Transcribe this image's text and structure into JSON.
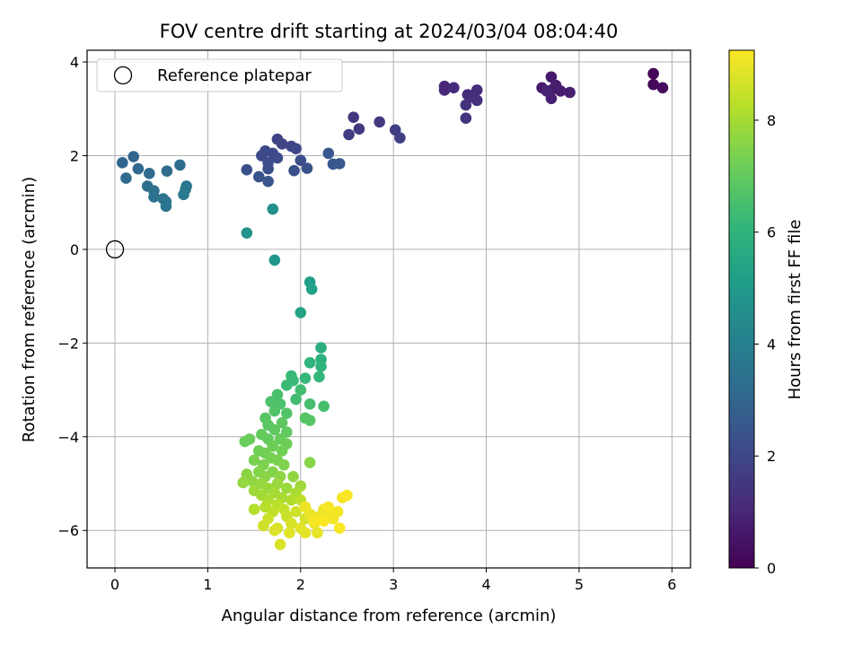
{
  "chart_data": {
    "type": "scatter",
    "title": "FOV centre drift starting at 2024/03/04 08:04:40",
    "xlabel": "Angular distance from reference (arcmin)",
    "ylabel": "Rotation from reference (arcmin)",
    "xlim": [
      -0.3,
      6.2
    ],
    "ylim": [
      -6.8,
      4.25
    ],
    "x_ticks": [
      0,
      1,
      2,
      3,
      4,
      5,
      6
    ],
    "x_tick_labels": [
      "0",
      "1",
      "2",
      "3",
      "4",
      "5",
      "6"
    ],
    "y_ticks": [
      4,
      2,
      0,
      -2,
      -4,
      -6
    ],
    "y_tick_labels": [
      "4",
      "2",
      "0",
      "−2",
      "−4",
      "−6"
    ],
    "grid": true,
    "legend": {
      "position": "top-left",
      "entries": [
        {
          "label": "Reference platepar",
          "marker": "open-circle",
          "color": "#000000"
        }
      ]
    },
    "reference_point": {
      "x": 0,
      "y": 0
    },
    "colorbar": {
      "label": "Hours from first FF file",
      "range": [
        0,
        9.25
      ],
      "ticks": [
        0,
        2,
        4,
        6,
        8
      ],
      "tick_labels": [
        "0",
        "2",
        "4",
        "6",
        "8"
      ],
      "colormap": "viridis",
      "stops": [
        "#440154",
        "#482878",
        "#3e4989",
        "#31688e",
        "#26828e",
        "#1f9e89",
        "#35b779",
        "#6ece58",
        "#b5de2b",
        "#fde725"
      ]
    },
    "points": [
      {
        "x": 5.8,
        "y": 3.75,
        "t": 0.1
      },
      {
        "x": 5.8,
        "y": 3.52,
        "t": 0.2
      },
      {
        "x": 5.9,
        "y": 3.45,
        "t": 0.25
      },
      {
        "x": 4.7,
        "y": 3.68,
        "t": 0.6
      },
      {
        "x": 4.6,
        "y": 3.45,
        "t": 0.65
      },
      {
        "x": 4.7,
        "y": 3.4,
        "t": 0.7
      },
      {
        "x": 4.75,
        "y": 3.5,
        "t": 0.7
      },
      {
        "x": 4.8,
        "y": 3.38,
        "t": 0.75
      },
      {
        "x": 4.9,
        "y": 3.35,
        "t": 0.8
      },
      {
        "x": 4.7,
        "y": 3.22,
        "t": 0.85
      },
      {
        "x": 4.65,
        "y": 3.38,
        "t": 0.9
      },
      {
        "x": 3.55,
        "y": 3.48,
        "t": 1.0
      },
      {
        "x": 3.55,
        "y": 3.4,
        "t": 1.05
      },
      {
        "x": 3.65,
        "y": 3.45,
        "t": 1.1
      },
      {
        "x": 3.8,
        "y": 3.3,
        "t": 1.15
      },
      {
        "x": 3.9,
        "y": 3.4,
        "t": 1.2
      },
      {
        "x": 3.85,
        "y": 3.25,
        "t": 1.25
      },
      {
        "x": 3.9,
        "y": 3.18,
        "t": 1.3
      },
      {
        "x": 3.78,
        "y": 3.08,
        "t": 1.35
      },
      {
        "x": 3.78,
        "y": 2.8,
        "t": 1.4
      },
      {
        "x": 2.57,
        "y": 2.82,
        "t": 1.5
      },
      {
        "x": 2.85,
        "y": 2.72,
        "t": 1.55
      },
      {
        "x": 2.63,
        "y": 2.57,
        "t": 1.6
      },
      {
        "x": 2.52,
        "y": 2.45,
        "t": 1.65
      },
      {
        "x": 3.02,
        "y": 2.55,
        "t": 1.7
      },
      {
        "x": 3.07,
        "y": 2.38,
        "t": 1.75
      },
      {
        "x": 1.75,
        "y": 2.35,
        "t": 1.85
      },
      {
        "x": 1.8,
        "y": 2.25,
        "t": 1.9
      },
      {
        "x": 1.9,
        "y": 2.2,
        "t": 1.95
      },
      {
        "x": 1.95,
        "y": 2.15,
        "t": 2.0
      },
      {
        "x": 1.62,
        "y": 2.1,
        "t": 2.05
      },
      {
        "x": 1.58,
        "y": 2.0,
        "t": 2.1
      },
      {
        "x": 1.7,
        "y": 2.05,
        "t": 2.1
      },
      {
        "x": 1.75,
        "y": 1.95,
        "t": 2.15
      },
      {
        "x": 1.65,
        "y": 1.85,
        "t": 2.2
      },
      {
        "x": 2.0,
        "y": 1.9,
        "t": 2.2
      },
      {
        "x": 1.65,
        "y": 1.72,
        "t": 2.25
      },
      {
        "x": 1.42,
        "y": 1.7,
        "t": 2.3
      },
      {
        "x": 1.93,
        "y": 1.68,
        "t": 2.3
      },
      {
        "x": 2.07,
        "y": 1.73,
        "t": 2.35
      },
      {
        "x": 1.55,
        "y": 1.55,
        "t": 2.4
      },
      {
        "x": 1.65,
        "y": 1.45,
        "t": 2.45
      },
      {
        "x": 2.3,
        "y": 2.05,
        "t": 2.5
      },
      {
        "x": 2.35,
        "y": 1.82,
        "t": 2.55
      },
      {
        "x": 2.42,
        "y": 1.83,
        "t": 2.6
      },
      {
        "x": 0.2,
        "y": 1.98,
        "t": 3.0
      },
      {
        "x": 0.08,
        "y": 1.85,
        "t": 3.05
      },
      {
        "x": 0.25,
        "y": 1.72,
        "t": 3.1
      },
      {
        "x": 0.37,
        "y": 1.62,
        "t": 3.15
      },
      {
        "x": 0.12,
        "y": 1.52,
        "t": 3.2
      },
      {
        "x": 0.56,
        "y": 1.67,
        "t": 3.25
      },
      {
        "x": 0.7,
        "y": 1.8,
        "t": 3.3
      },
      {
        "x": 0.35,
        "y": 1.35,
        "t": 3.35
      },
      {
        "x": 0.42,
        "y": 1.25,
        "t": 3.4
      },
      {
        "x": 0.42,
        "y": 1.12,
        "t": 3.45
      },
      {
        "x": 0.52,
        "y": 1.08,
        "t": 3.5
      },
      {
        "x": 0.55,
        "y": 1.02,
        "t": 3.55
      },
      {
        "x": 0.55,
        "y": 0.92,
        "t": 3.6
      },
      {
        "x": 0.77,
        "y": 1.35,
        "t": 3.65
      },
      {
        "x": 0.76,
        "y": 1.28,
        "t": 3.7
      },
      {
        "x": 0.74,
        "y": 1.17,
        "t": 3.75
      },
      {
        "x": 1.7,
        "y": 0.86,
        "t": 4.6
      },
      {
        "x": 1.42,
        "y": 0.35,
        "t": 4.7
      },
      {
        "x": 1.72,
        "y": -0.23,
        "t": 4.9
      },
      {
        "x": 2.1,
        "y": -0.7,
        "t": 5.2
      },
      {
        "x": 2.12,
        "y": -0.85,
        "t": 5.3
      },
      {
        "x": 2.0,
        "y": -1.35,
        "t": 5.4
      },
      {
        "x": 2.22,
        "y": -2.1,
        "t": 5.8
      },
      {
        "x": 2.22,
        "y": -2.35,
        "t": 5.9
      },
      {
        "x": 2.22,
        "y": -2.5,
        "t": 6.0
      },
      {
        "x": 2.1,
        "y": -2.42,
        "t": 6.0
      },
      {
        "x": 2.2,
        "y": -2.72,
        "t": 6.1
      },
      {
        "x": 1.9,
        "y": -2.7,
        "t": 6.2
      },
      {
        "x": 2.05,
        "y": -2.75,
        "t": 6.2
      },
      {
        "x": 1.92,
        "y": -2.8,
        "t": 6.25
      },
      {
        "x": 1.85,
        "y": -2.9,
        "t": 6.3
      },
      {
        "x": 1.95,
        "y": -3.2,
        "t": 6.4
      },
      {
        "x": 2.0,
        "y": -3.0,
        "t": 6.4
      },
      {
        "x": 2.1,
        "y": -3.3,
        "t": 6.5
      },
      {
        "x": 2.25,
        "y": -3.35,
        "t": 6.5
      },
      {
        "x": 1.75,
        "y": -3.1,
        "t": 6.55
      },
      {
        "x": 1.78,
        "y": -3.3,
        "t": 6.6
      },
      {
        "x": 1.68,
        "y": -3.25,
        "t": 6.6
      },
      {
        "x": 1.72,
        "y": -3.45,
        "t": 6.7
      },
      {
        "x": 1.85,
        "y": -3.5,
        "t": 6.7
      },
      {
        "x": 2.05,
        "y": -3.6,
        "t": 6.75
      },
      {
        "x": 2.1,
        "y": -3.65,
        "t": 6.8
      },
      {
        "x": 1.62,
        "y": -3.6,
        "t": 6.8
      },
      {
        "x": 1.65,
        "y": -3.75,
        "t": 6.85
      },
      {
        "x": 1.8,
        "y": -3.7,
        "t": 6.9
      },
      {
        "x": 1.72,
        "y": -3.85,
        "t": 6.9
      },
      {
        "x": 1.85,
        "y": -3.9,
        "t": 6.95
      },
      {
        "x": 1.58,
        "y": -3.95,
        "t": 7.0
      },
      {
        "x": 1.65,
        "y": -4.05,
        "t": 7.0
      },
      {
        "x": 1.78,
        "y": -4.05,
        "t": 7.05
      },
      {
        "x": 1.45,
        "y": -4.05,
        "t": 7.1
      },
      {
        "x": 1.4,
        "y": -4.1,
        "t": 7.1
      },
      {
        "x": 1.85,
        "y": -4.15,
        "t": 7.15
      },
      {
        "x": 1.7,
        "y": -4.2,
        "t": 7.15
      },
      {
        "x": 1.55,
        "y": -4.3,
        "t": 7.2
      },
      {
        "x": 1.62,
        "y": -4.35,
        "t": 7.25
      },
      {
        "x": 1.8,
        "y": -4.3,
        "t": 7.25
      },
      {
        "x": 1.68,
        "y": -4.45,
        "t": 7.3
      },
      {
        "x": 1.5,
        "y": -4.5,
        "t": 7.35
      },
      {
        "x": 1.75,
        "y": -4.5,
        "t": 7.35
      },
      {
        "x": 1.6,
        "y": -4.6,
        "t": 7.4
      },
      {
        "x": 1.82,
        "y": -4.6,
        "t": 7.45
      },
      {
        "x": 1.55,
        "y": -4.75,
        "t": 7.5
      },
      {
        "x": 1.7,
        "y": -4.75,
        "t": 7.5
      },
      {
        "x": 2.1,
        "y": -4.55,
        "t": 7.55
      },
      {
        "x": 1.42,
        "y": -4.8,
        "t": 7.6
      },
      {
        "x": 1.62,
        "y": -4.85,
        "t": 7.6
      },
      {
        "x": 1.78,
        "y": -4.85,
        "t": 7.65
      },
      {
        "x": 1.92,
        "y": -4.85,
        "t": 7.7
      },
      {
        "x": 1.48,
        "y": -4.95,
        "t": 7.7
      },
      {
        "x": 1.38,
        "y": -4.98,
        "t": 7.75
      },
      {
        "x": 1.58,
        "y": -5.0,
        "t": 7.75
      },
      {
        "x": 1.75,
        "y": -5.0,
        "t": 7.8
      },
      {
        "x": 1.65,
        "y": -5.1,
        "t": 7.85
      },
      {
        "x": 1.85,
        "y": -5.1,
        "t": 7.85
      },
      {
        "x": 2.0,
        "y": -5.05,
        "t": 7.9
      },
      {
        "x": 1.5,
        "y": -5.15,
        "t": 7.9
      },
      {
        "x": 1.58,
        "y": -5.25,
        "t": 7.95
      },
      {
        "x": 1.72,
        "y": -5.2,
        "t": 8.0
      },
      {
        "x": 1.8,
        "y": -5.3,
        "t": 8.05
      },
      {
        "x": 1.95,
        "y": -5.2,
        "t": 8.05
      },
      {
        "x": 1.65,
        "y": -5.35,
        "t": 8.1
      },
      {
        "x": 1.9,
        "y": -5.35,
        "t": 8.15
      },
      {
        "x": 1.5,
        "y": -5.55,
        "t": 8.2
      },
      {
        "x": 1.62,
        "y": -5.5,
        "t": 8.25
      },
      {
        "x": 1.75,
        "y": -5.45,
        "t": 8.3
      },
      {
        "x": 2.0,
        "y": -5.35,
        "t": 8.35
      },
      {
        "x": 1.7,
        "y": -5.6,
        "t": 8.4
      },
      {
        "x": 1.82,
        "y": -5.55,
        "t": 8.45
      },
      {
        "x": 1.85,
        "y": -5.7,
        "t": 8.5
      },
      {
        "x": 1.65,
        "y": -5.75,
        "t": 8.55
      },
      {
        "x": 1.95,
        "y": -5.6,
        "t": 8.6
      },
      {
        "x": 1.6,
        "y": -5.9,
        "t": 8.6
      },
      {
        "x": 1.75,
        "y": -5.95,
        "t": 8.65
      },
      {
        "x": 1.9,
        "y": -5.85,
        "t": 8.7
      },
      {
        "x": 2.05,
        "y": -5.75,
        "t": 8.7
      },
      {
        "x": 1.78,
        "y": -6.3,
        "t": 8.75
      },
      {
        "x": 1.72,
        "y": -6.0,
        "t": 8.8
      },
      {
        "x": 1.88,
        "y": -6.05,
        "t": 8.85
      },
      {
        "x": 2.0,
        "y": -5.95,
        "t": 8.85
      },
      {
        "x": 2.05,
        "y": -6.05,
        "t": 8.9
      },
      {
        "x": 2.15,
        "y": -5.85,
        "t": 8.9
      },
      {
        "x": 2.18,
        "y": -6.05,
        "t": 8.95
      },
      {
        "x": 2.1,
        "y": -5.65,
        "t": 8.95
      },
      {
        "x": 2.2,
        "y": -5.7,
        "t": 9.0
      },
      {
        "x": 2.25,
        "y": -5.55,
        "t": 9.0
      },
      {
        "x": 2.05,
        "y": -5.5,
        "t": 9.05
      },
      {
        "x": 2.3,
        "y": -5.65,
        "t": 9.05
      },
      {
        "x": 2.35,
        "y": -5.75,
        "t": 9.1
      },
      {
        "x": 2.4,
        "y": -5.6,
        "t": 9.1
      },
      {
        "x": 2.3,
        "y": -5.5,
        "t": 9.15
      },
      {
        "x": 2.45,
        "y": -5.3,
        "t": 9.15
      },
      {
        "x": 2.5,
        "y": -5.25,
        "t": 9.2
      },
      {
        "x": 2.42,
        "y": -5.95,
        "t": 9.2
      },
      {
        "x": 2.15,
        "y": -5.8,
        "t": 9.2
      },
      {
        "x": 2.25,
        "y": -5.8,
        "t": 9.25
      }
    ]
  }
}
